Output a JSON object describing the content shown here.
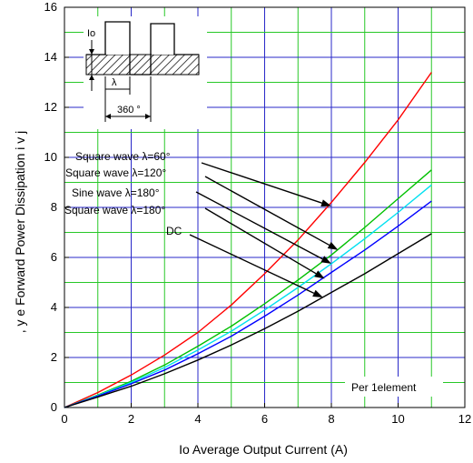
{
  "colors": {
    "grid_major": "#2828c8",
    "grid_minor": "#28c828",
    "dc": "#000000",
    "sq180": "#0000ff",
    "sine180": "#00e0f0",
    "sq120": "#00c000",
    "sq60": "#ff0000"
  },
  "chart_data": {
    "type": "line",
    "xlabel": "Io   Average Output Current   (A)",
    "ylabel": ", y e  Forward Power Dissipation    i  v j",
    "xlim": [
      0,
      12
    ],
    "ylim": [
      0,
      16
    ],
    "xticks": [
      "0",
      "2",
      "4",
      "6",
      "8",
      "10",
      "12"
    ],
    "yticks": [
      "0",
      "2",
      "4",
      "6",
      "8",
      "10",
      "12",
      "14",
      "16"
    ],
    "grid": true,
    "note": "Per 1element",
    "series": [
      {
        "name": "Square wave λ=60°",
        "x": [
          0,
          1,
          2,
          3,
          4,
          5,
          6,
          7,
          8,
          9,
          10,
          11
        ],
        "y": [
          0,
          0.6,
          1.3,
          2.1,
          3.0,
          4.1,
          5.35,
          6.7,
          8.2,
          9.8,
          11.5,
          13.4
        ]
      },
      {
        "name": "Square wave λ=120°",
        "x": [
          0,
          1,
          2,
          3,
          4,
          5,
          6,
          7,
          8,
          9,
          10,
          11
        ],
        "y": [
          0,
          0.5,
          1.05,
          1.7,
          2.45,
          3.25,
          4.15,
          5.1,
          6.1,
          7.2,
          8.35,
          9.5
        ]
      },
      {
        "name": "Sine wave λ=180°",
        "x": [
          0,
          1,
          2,
          3,
          4,
          5,
          6,
          7,
          8,
          9,
          10,
          11
        ],
        "y": [
          0,
          0.48,
          1.0,
          1.6,
          2.3,
          3.05,
          3.9,
          4.8,
          5.75,
          6.75,
          7.8,
          8.9
        ]
      },
      {
        "name": "Square wave λ=180°",
        "x": [
          0,
          1,
          2,
          3,
          4,
          5,
          6,
          7,
          8,
          9,
          10,
          11
        ],
        "y": [
          0,
          0.46,
          0.95,
          1.5,
          2.15,
          2.85,
          3.65,
          4.5,
          5.4,
          6.3,
          7.25,
          8.25
        ]
      },
      {
        "name": "DC",
        "x": [
          0,
          1,
          2,
          3,
          4,
          5,
          6,
          7,
          8,
          9,
          10,
          11
        ],
        "y": [
          0,
          0.42,
          0.85,
          1.35,
          1.9,
          2.5,
          3.15,
          3.85,
          4.6,
          5.35,
          6.15,
          6.95
        ]
      }
    ],
    "legend": [
      {
        "label": "Square wave λ=60°",
        "series": 0,
        "arrow_to": [
          8.0,
          8.05
        ]
      },
      {
        "label": "Square wave λ=120°",
        "series": 1,
        "arrow_to": [
          8.2,
          6.3
        ]
      },
      {
        "label": "Sine wave λ=180°",
        "series": 2,
        "arrow_to": [
          8.0,
          5.75
        ]
      },
      {
        "label": "Square wave λ=180°",
        "series": 3,
        "arrow_to": [
          7.8,
          5.15
        ]
      },
      {
        "label": "DC",
        "series": 4,
        "arrow_to": [
          7.75,
          4.4
        ]
      }
    ],
    "inset": {
      "labels": [
        "Io",
        "λ",
        "360 °"
      ]
    }
  }
}
